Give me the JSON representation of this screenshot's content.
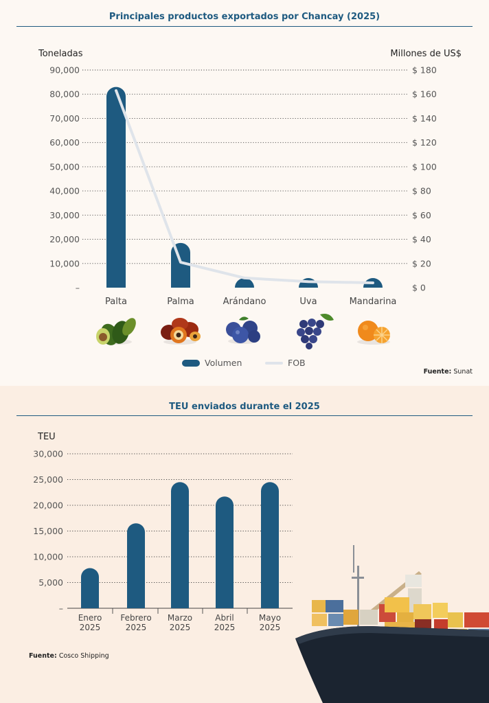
{
  "chart1": {
    "title": "Principales productos exportados por Chancay (2025)",
    "left_axis_label": "Toneladas",
    "right_axis_label": "Millones de US$",
    "left_ticks": [
      "–",
      "10,000",
      "20,000",
      "30,000",
      "40,000",
      "50,000",
      "60,000",
      "70,000",
      "80,000",
      "90,000"
    ],
    "right_ticks": [
      "$ 0",
      "$ 20",
      "$ 40",
      "$ 60",
      "$ 80",
      "$ 100",
      "$ 120",
      "$ 140",
      "$ 160",
      "$ 180"
    ],
    "legend": {
      "volume": "Volumen",
      "fob": "FOB"
    },
    "source_label": "Fuente:",
    "source_value": "Sunat",
    "colors": {
      "bar": "#1e5a80",
      "line": "#dfe4ea",
      "title": "#1e5a80"
    },
    "icons": [
      "avocado-icon",
      "palm-fruit-icon",
      "blueberry-icon",
      "grape-icon",
      "mandarin-icon"
    ]
  },
  "chart2": {
    "title": "TEU enviados durante el 2025",
    "axis_label": "TEU",
    "ticks": [
      "–",
      "5,000",
      "10,000",
      "15,000",
      "20,000",
      "25,000",
      "30,000"
    ],
    "source_label": "Fuente:",
    "source_value": "Cosco Shipping",
    "colors": {
      "bar": "#1e5a80"
    },
    "icons": [
      "container-ship-icon"
    ]
  },
  "chart_data": [
    {
      "type": "bar",
      "title": "Principales productos exportados por Chancay (2025)",
      "categories": [
        "Palta",
        "Palma",
        "Arándano",
        "Uva",
        "Mandarina"
      ],
      "series": [
        {
          "name": "Volumen",
          "axis": "left",
          "type": "bar",
          "values": [
            83000,
            18500,
            1000,
            1000,
            2500
          ]
        },
        {
          "name": "FOB",
          "axis": "right",
          "type": "line",
          "values": [
            163,
            21,
            8,
            5,
            4
          ]
        }
      ],
      "ylabel": "Toneladas",
      "y2label": "Millones de US$",
      "ylim": [
        0,
        90000
      ],
      "y2lim": [
        0,
        180
      ],
      "grid": true,
      "legend": "bottom"
    },
    {
      "type": "bar",
      "title": "TEU enviados durante el 2025",
      "categories": [
        "Enero 2025",
        "Febrero 2025",
        "Marzo 2025",
        "Abril 2025",
        "Mayo 2025"
      ],
      "values": [
        7800,
        16500,
        24500,
        21700,
        24500
      ],
      "ylabel": "TEU",
      "ylim": [
        0,
        30000
      ],
      "grid": true
    }
  ]
}
